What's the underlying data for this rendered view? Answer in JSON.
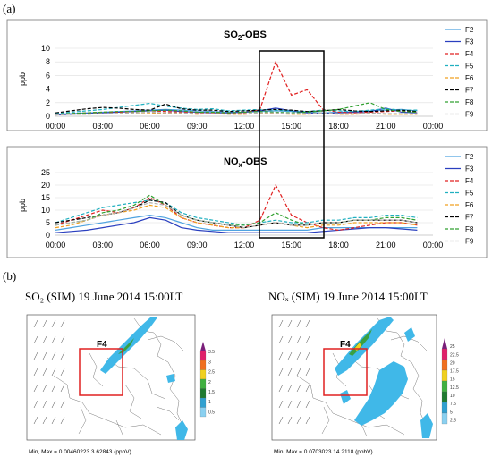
{
  "panel_a_label": "(a)",
  "panel_b_label": "(b)",
  "legend_series": [
    "F2",
    "F3",
    "F4",
    "F5",
    "F6",
    "F7",
    "F8",
    "F9"
  ],
  "chart_data": [
    {
      "type": "line",
      "title_main": "SO",
      "title_sub": "2",
      "title_tail": "-OBS",
      "ylabel": "ppb",
      "ylim": [
        0,
        10
      ],
      "yticks": [
        0,
        2,
        4,
        6,
        8,
        10
      ],
      "xticks": [
        "00:00",
        "03:00",
        "06:00",
        "09:00",
        "12:00",
        "15:00",
        "18:00",
        "21:00",
        "00:00"
      ],
      "x_hours": [
        0,
        1,
        2,
        3,
        4,
        5,
        6,
        7,
        8,
        9,
        10,
        11,
        12,
        13,
        14,
        15,
        16,
        17,
        18,
        19,
        20,
        21,
        22,
        23
      ],
      "series": [
        {
          "name": "F2",
          "color": "#4fa3e0",
          "dash": "",
          "values": [
            0.3,
            0.4,
            0.5,
            0.6,
            0.7,
            0.8,
            0.9,
            1.0,
            0.9,
            0.8,
            0.7,
            0.6,
            0.6,
            0.7,
            0.8,
            0.7,
            0.6,
            0.5,
            0.6,
            0.7,
            0.8,
            0.9,
            1.0,
            0.8
          ]
        },
        {
          "name": "F3",
          "color": "#2a3fbf",
          "dash": "",
          "values": [
            0.2,
            0.3,
            0.4,
            0.5,
            0.6,
            0.7,
            0.8,
            0.9,
            0.7,
            0.6,
            0.5,
            0.5,
            0.6,
            0.8,
            1.2,
            0.8,
            0.5,
            0.4,
            0.5,
            0.6,
            0.7,
            1.2,
            0.6,
            0.5
          ]
        },
        {
          "name": "F4",
          "color": "#e02020",
          "dash": "4,2",
          "values": [
            0.3,
            0.4,
            0.5,
            0.6,
            0.6,
            0.7,
            0.8,
            0.7,
            0.6,
            0.5,
            0.5,
            0.4,
            0.5,
            1.0,
            8.0,
            3.1,
            3.9,
            1.0,
            0.6,
            0.5,
            0.6,
            0.7,
            0.8,
            0.6
          ]
        },
        {
          "name": "F5",
          "color": "#20b0c0",
          "dash": "4,2",
          "values": [
            0.4,
            0.6,
            0.8,
            1.0,
            1.3,
            1.6,
            1.9,
            1.5,
            1.2,
            1.0,
            1.1,
            0.8,
            0.9,
            1.0,
            0.9,
            0.8,
            0.7,
            0.9,
            0.8,
            0.7,
            0.9,
            1.1,
            0.9,
            0.9
          ]
        },
        {
          "name": "F6",
          "color": "#f0a020",
          "dash": "4,2",
          "values": [
            0.2,
            0.3,
            0.3,
            0.4,
            0.4,
            0.5,
            0.5,
            0.4,
            0.4,
            0.3,
            0.4,
            0.3,
            0.3,
            0.4,
            0.4,
            0.3,
            0.3,
            0.4,
            0.3,
            0.3,
            0.4,
            0.3,
            0.3,
            0.3
          ]
        },
        {
          "name": "F7",
          "color": "#000000",
          "dash": "4,2",
          "values": [
            0.5,
            0.8,
            1.1,
            1.3,
            1.2,
            1.0,
            0.9,
            1.8,
            1.1,
            0.9,
            0.9,
            0.7,
            0.8,
            0.9,
            1.0,
            0.9,
            0.7,
            0.8,
            1.0,
            0.8,
            0.7,
            0.8,
            0.9,
            0.7
          ]
        },
        {
          "name": "F8",
          "color": "#30a030",
          "dash": "4,2",
          "values": [
            0.3,
            0.4,
            0.5,
            0.6,
            0.7,
            0.7,
            0.8,
            0.9,
            0.8,
            0.6,
            0.6,
            0.5,
            0.6,
            0.7,
            0.6,
            0.5,
            0.6,
            0.8,
            1.0,
            1.5,
            2.0,
            1.0,
            0.7,
            0.6
          ]
        },
        {
          "name": "F9",
          "color": "#b0b0b0",
          "dash": "4,2",
          "values": [
            0.2,
            0.3,
            0.3,
            0.4,
            0.4,
            0.5,
            0.6,
            0.5,
            0.5,
            0.4,
            0.4,
            0.3,
            0.4,
            0.5,
            0.5,
            0.4,
            0.4,
            0.5,
            0.4,
            0.4,
            0.5,
            0.4,
            0.4,
            0.4
          ]
        }
      ]
    },
    {
      "type": "line",
      "title_main": "NO",
      "title_sub": "x",
      "title_tail": "-OBS",
      "ylabel": "ppb",
      "ylim": [
        0,
        25
      ],
      "yticks": [
        0,
        5,
        10,
        15,
        20,
        25
      ],
      "xticks": [
        "00:00",
        "03:00",
        "06:00",
        "09:00",
        "12:00",
        "15:00",
        "18:00",
        "21:00",
        "00:00"
      ],
      "x_hours": [
        0,
        1,
        2,
        3,
        4,
        5,
        6,
        7,
        8,
        9,
        10,
        11,
        12,
        13,
        14,
        15,
        16,
        17,
        18,
        19,
        20,
        21,
        22,
        23
      ],
      "series": [
        {
          "name": "F2",
          "color": "#4fa3e0",
          "dash": "",
          "values": [
            2,
            3,
            4,
            5,
            6,
            7,
            8,
            7,
            5,
            3,
            2,
            2,
            2,
            2,
            2,
            2,
            2,
            3,
            3,
            3,
            3,
            3,
            3,
            3
          ]
        },
        {
          "name": "F3",
          "color": "#2a3fbf",
          "dash": "",
          "values": [
            1,
            1.5,
            2,
            3,
            4,
            5,
            7,
            6,
            3,
            2,
            1.5,
            1,
            1,
            1,
            1,
            1,
            1,
            1.5,
            2,
            2.5,
            3,
            3,
            2.5,
            2
          ]
        },
        {
          "name": "F4",
          "color": "#e02020",
          "dash": "4,2",
          "values": [
            4,
            6,
            8,
            10,
            9,
            11,
            15,
            12,
            7,
            5,
            4,
            3,
            3,
            6,
            20,
            8,
            5,
            3,
            2,
            3,
            4,
            5,
            5,
            4
          ]
        },
        {
          "name": "F5",
          "color": "#20b0c0",
          "dash": "4,2",
          "values": [
            5,
            7,
            9,
            11,
            12,
            13,
            14,
            13,
            9,
            7,
            6,
            5,
            4,
            5,
            6,
            5,
            5,
            6,
            6,
            7,
            7,
            8,
            8,
            7
          ]
        },
        {
          "name": "F6",
          "color": "#f0a020",
          "dash": "4,2",
          "values": [
            3,
            4,
            6,
            8,
            9,
            10,
            12,
            11,
            7,
            5,
            4,
            3,
            3,
            4,
            5,
            4,
            3,
            4,
            4,
            5,
            5,
            5,
            5,
            4
          ]
        },
        {
          "name": "F7",
          "color": "#000000",
          "dash": "4,2",
          "values": [
            5,
            6,
            7,
            8,
            9,
            11,
            14,
            13,
            8,
            6,
            5,
            4,
            3,
            4,
            5,
            4,
            4,
            5,
            5,
            6,
            6,
            6,
            6,
            5
          ]
        },
        {
          "name": "F8",
          "color": "#30a030",
          "dash": "4,2",
          "values": [
            4,
            5,
            6,
            9,
            10,
            12,
            16,
            12,
            8,
            6,
            5,
            4,
            4,
            5,
            9,
            6,
            4,
            5,
            5,
            6,
            6,
            7,
            7,
            6
          ]
        },
        {
          "name": "F9",
          "color": "#b0b0b0",
          "dash": "4,2",
          "values": [
            4,
            5,
            6,
            8,
            9,
            11,
            13,
            12,
            8,
            6,
            5,
            4,
            3,
            4,
            5,
            4,
            4,
            5,
            5,
            6,
            6,
            6,
            6,
            5
          ]
        }
      ]
    }
  ],
  "maps": [
    {
      "title": "SO₂ (SIM) 19 June 2014 15:00LT",
      "box_label": "F4",
      "minmax": "Min, Max = 0.00460223  3.62843  (ppbV)",
      "colorbar": [
        "3.5",
        "3",
        "2.5",
        "2",
        "1.5",
        "1",
        "0.5"
      ],
      "colors": [
        "#7a1f7a",
        "#e0206a",
        "#f07020",
        "#f0d020",
        "#40b040",
        "#207a30",
        "#30a0d0",
        "#8ad0f0"
      ]
    },
    {
      "title": "NOₓ (SIM) 19 June 2014 15:00LT",
      "box_label": "F4",
      "minmax": "Min, Max = 0.0703023  14.2118  (ppbV)",
      "colorbar": [
        "25",
        "22.5",
        "20",
        "17.5",
        "15",
        "12.5",
        "10",
        "7.5",
        "5",
        "2.5"
      ],
      "colors": [
        "#7a1f7a",
        "#e0206a",
        "#f07020",
        "#f0d020",
        "#40b040",
        "#207a30",
        "#30a0d0",
        "#8ad0f0"
      ]
    }
  ]
}
